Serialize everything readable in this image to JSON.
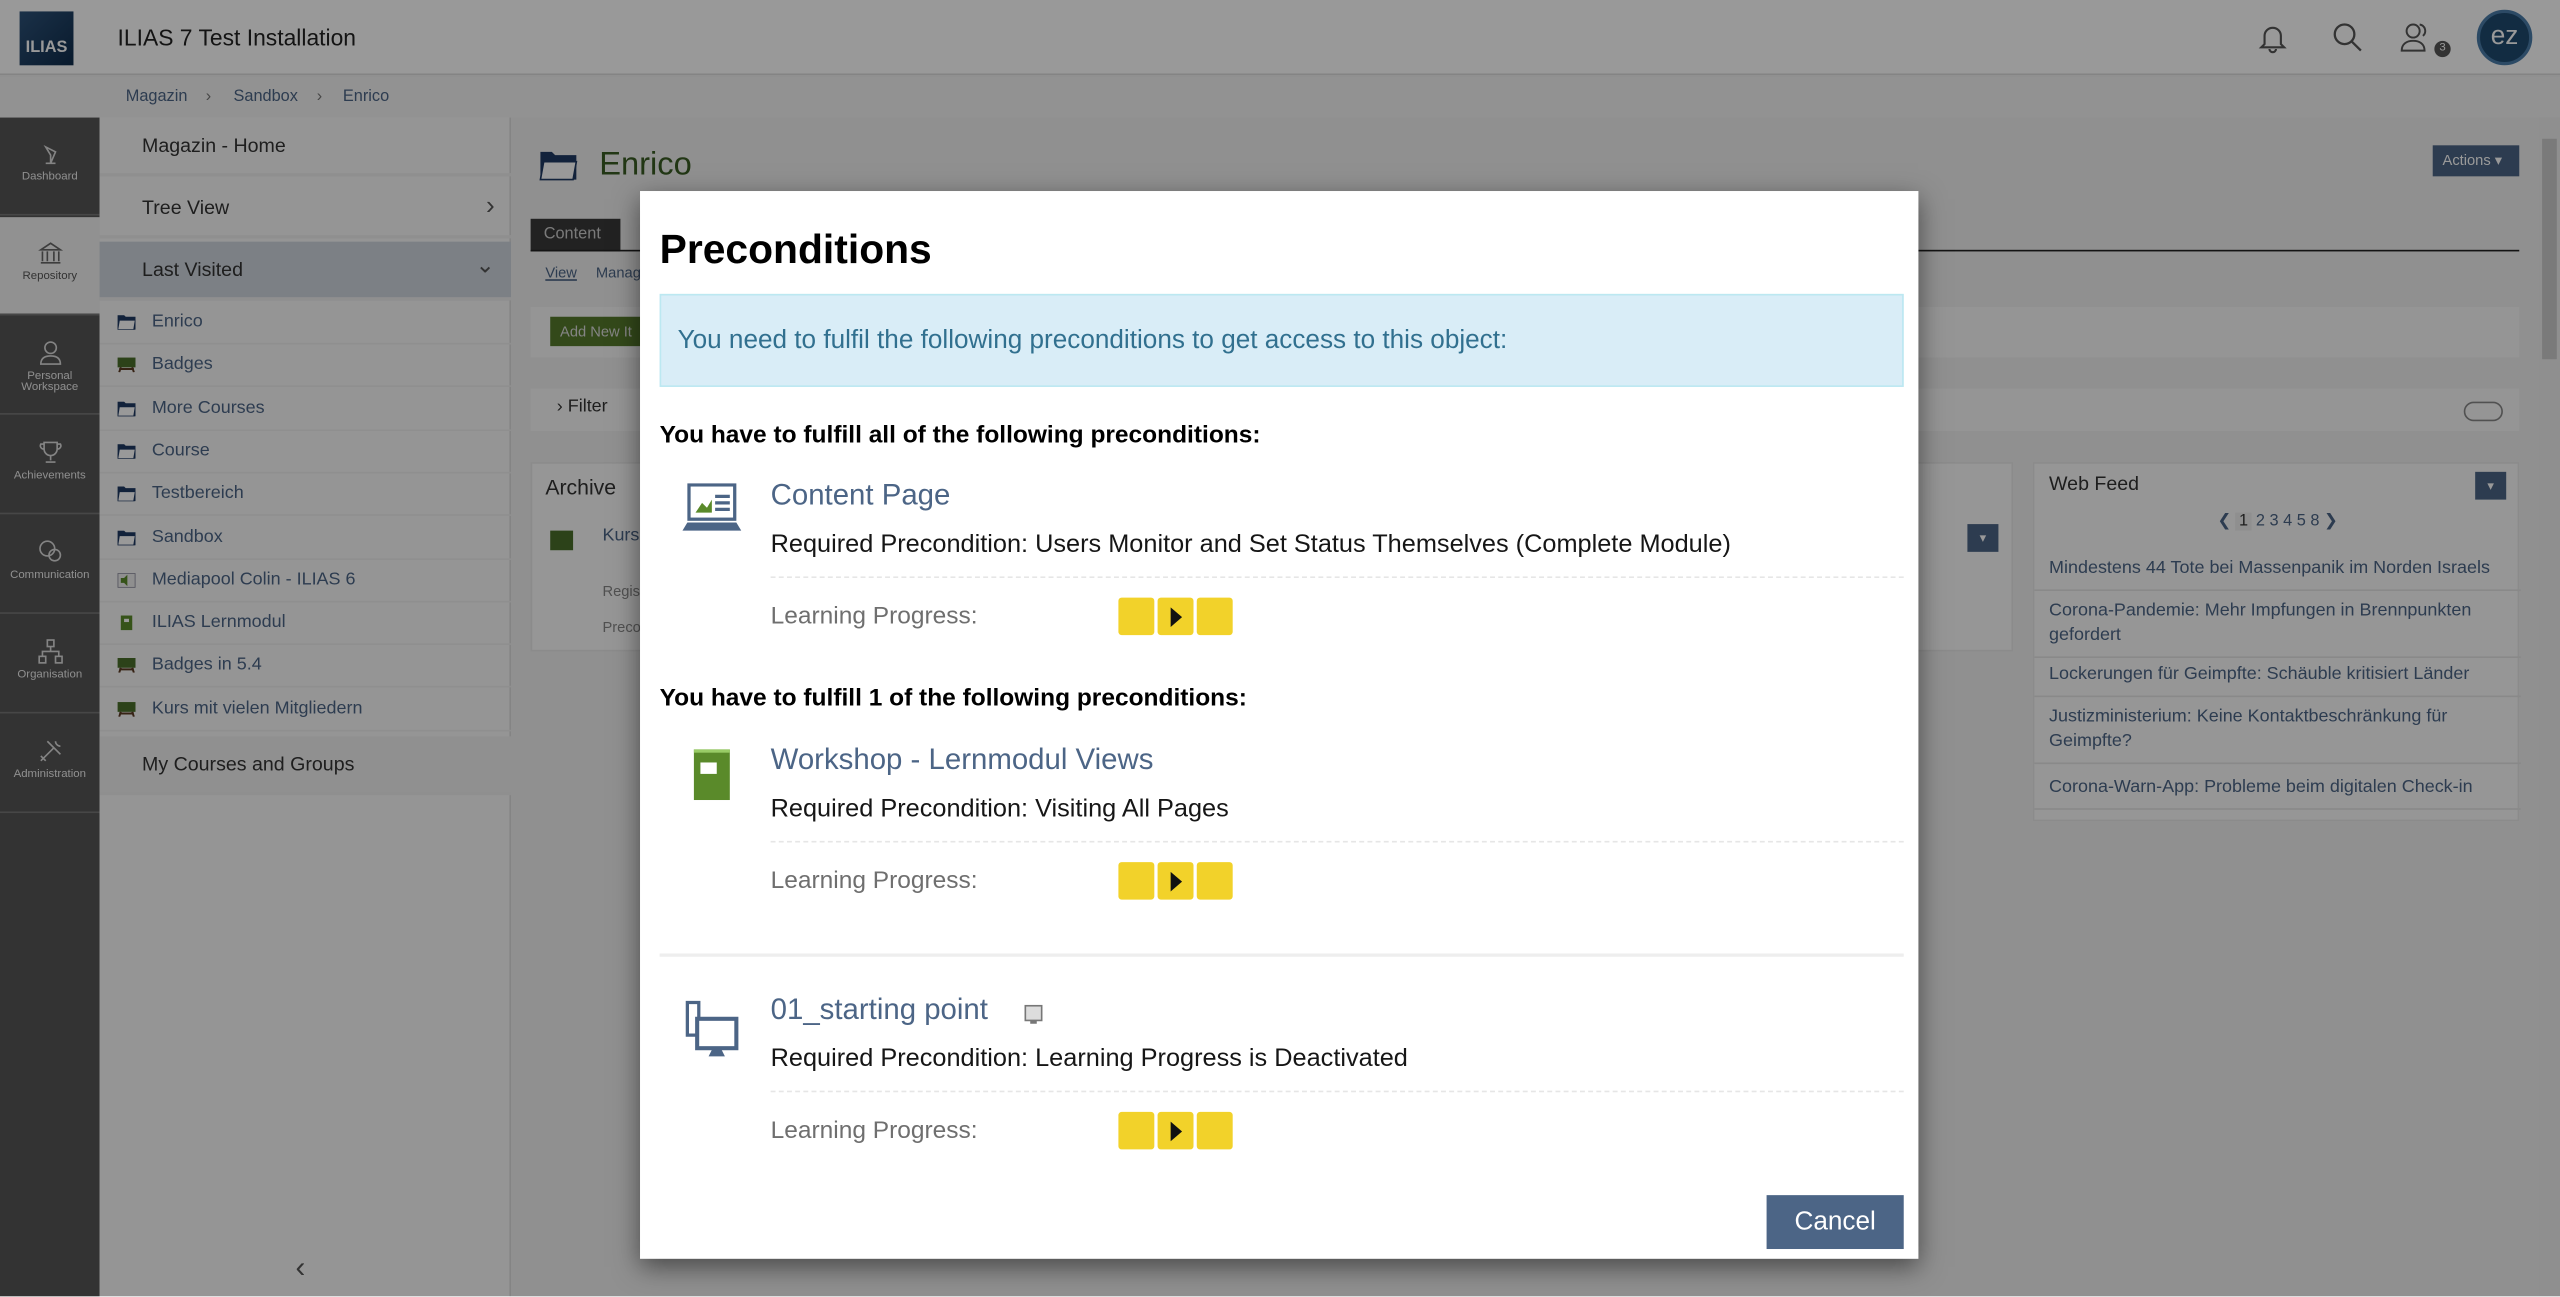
{
  "header": {
    "logo_text": "ILIAS",
    "title": "ILIAS 7 Test Installation",
    "notification_count": "3",
    "avatar_initials": "ez",
    "icons": [
      "bell-icon",
      "search-icon",
      "users-icon"
    ]
  },
  "breadcrumb": [
    "Magazin",
    "Sandbox",
    "Enrico"
  ],
  "mainbar": [
    {
      "label": "Dashboard",
      "icon": "dashboard-icon"
    },
    {
      "label": "Repository",
      "icon": "repository-icon",
      "active": true
    },
    {
      "label": "Personal Workspace",
      "icon": "user-icon"
    },
    {
      "label": "Achievements",
      "icon": "trophy-icon"
    },
    {
      "label": "Communication",
      "icon": "chat-icon"
    },
    {
      "label": "Organisation",
      "icon": "org-icon"
    },
    {
      "label": "Administration",
      "icon": "tools-icon"
    }
  ],
  "slate": {
    "top": [
      "Magazin - Home",
      "Tree View",
      "Last Visited"
    ],
    "items": [
      {
        "label": "Enrico",
        "type": "folder"
      },
      {
        "label": "Badges",
        "type": "course"
      },
      {
        "label": "More Courses",
        "type": "folder"
      },
      {
        "label": "Course",
        "type": "folder"
      },
      {
        "label": "Testbereich",
        "type": "folder"
      },
      {
        "label": "Sandbox",
        "type": "folder"
      },
      {
        "label": "Mediapool Colin - ILIAS 6",
        "type": "media"
      },
      {
        "label": "ILIAS Lernmodul",
        "type": "module"
      },
      {
        "label": "Badges in 5.4",
        "type": "course"
      },
      {
        "label": "Kurs mit vielen Mitgliedern",
        "type": "course"
      }
    ],
    "bottom": "My Courses and Groups"
  },
  "main": {
    "title": "Enrico",
    "actions": "Actions",
    "tab": "Content",
    "subtabs": [
      "View",
      "Manag"
    ],
    "add_new": "Add New It",
    "filter": "Filter",
    "archive": {
      "title": "Archive",
      "item": "Kurs",
      "line1": "Regist",
      "line2": "Preco"
    }
  },
  "webfeed": {
    "title": "Web Feed",
    "pages": [
      "1",
      "2",
      "3",
      "4",
      "5",
      "8"
    ],
    "items": [
      "Mindestens 44 Tote bei Massenpanik im Norden Israels",
      "Corona-Pandemie: Mehr Impfungen in Brennpunkten gefordert",
      "Lockerungen für Geimpfte: Schäuble kritisiert Länder",
      "Justizministerium: Keine Kontaktbeschränkung für Geimpfte?",
      "Corona-Warn-App: Probleme beim digitalen Check-in"
    ]
  },
  "modal": {
    "title": "Preconditions",
    "info": "You need to fulfil the following preconditions to get access to this object:",
    "section_all": "You have to fulfill all of the following preconditions:",
    "section_one": "You have to fulfill 1 of the following preconditions:",
    "lp_label": "Learning Progress:",
    "items": [
      {
        "title": "Content Page",
        "required": "Required Precondition: Users Monitor and Set Status Themselves (Complete Module)",
        "icon": "content-page-icon",
        "progress_status": "in-progress"
      },
      {
        "title": "Workshop - Lernmodul Views",
        "required": "Required Precondition: Visiting All Pages",
        "icon": "learning-module-icon",
        "progress_status": "in-progress"
      },
      {
        "title": "01_starting point",
        "required": "Required Precondition: Learning Progress is Deactivated",
        "icon": "scorm-icon",
        "progress_status": "in-progress"
      }
    ],
    "cancel": "Cancel"
  },
  "colors": {
    "accent": "#4c6586",
    "info_bg": "#d9edf7",
    "info_text": "#31708f",
    "progress_yellow": "#f2d22a"
  }
}
